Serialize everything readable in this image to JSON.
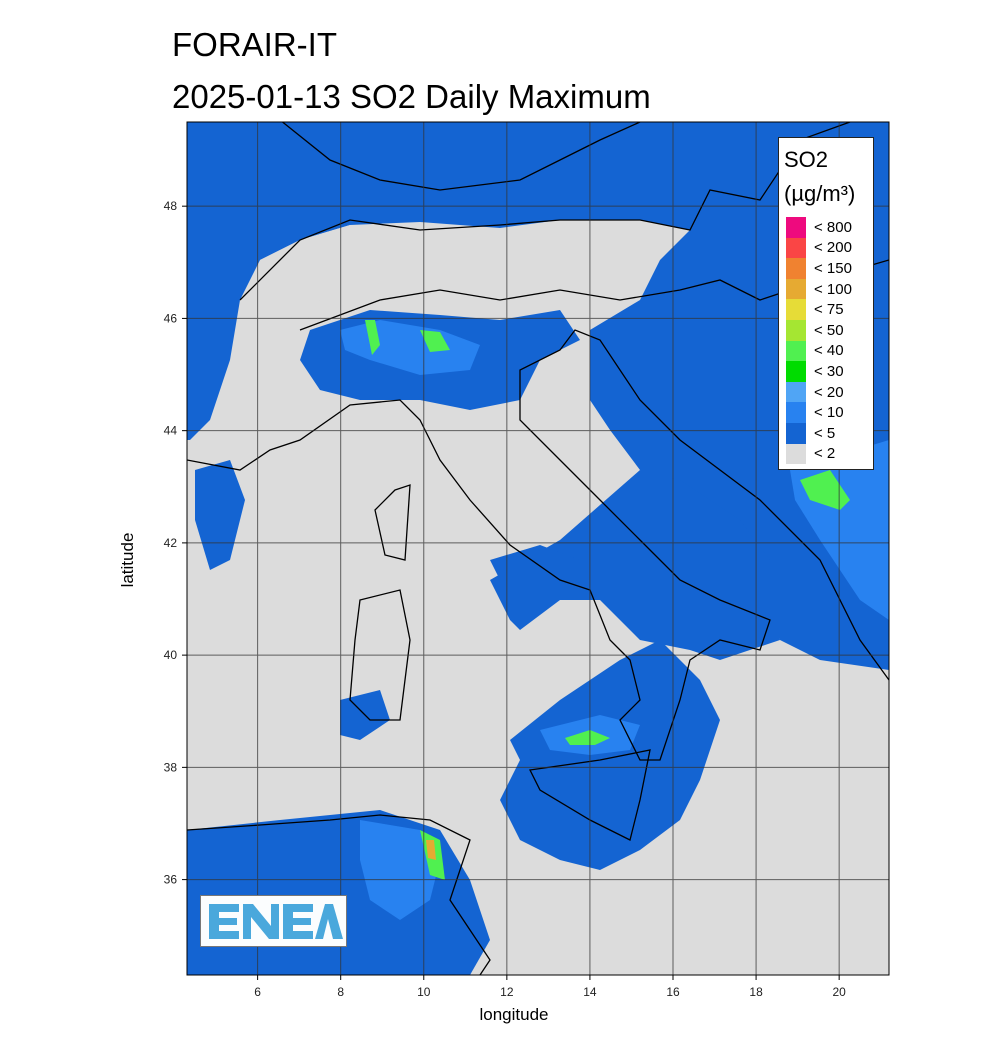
{
  "header": {
    "title": "FORAIR-IT",
    "subtitle": "2025-01-13   SO2 Daily Maximum"
  },
  "axes": {
    "xlabel": "longitude",
    "ylabel": "latitude",
    "x_ticks": [
      "6",
      "8",
      "10",
      "12",
      "14",
      "16",
      "18",
      "20"
    ],
    "y_ticks": [
      "48",
      "46",
      "44",
      "42",
      "40",
      "38",
      "36"
    ],
    "lon_range": [
      4.3,
      21.2
    ],
    "lat_range": [
      34.3,
      49.5
    ],
    "grid": true
  },
  "legend": {
    "title": "SO2",
    "unit": "(µg/m³)",
    "items": [
      {
        "label": "< 800",
        "color": "#ee0a7e"
      },
      {
        "label": "< 200",
        "color": "#fa4545"
      },
      {
        "label": "< 150",
        "color": "#f08230"
      },
      {
        "label": "< 100",
        "color": "#e6aa32"
      },
      {
        "label": "< 75",
        "color": "#e6dc37"
      },
      {
        "label": "< 50",
        "color": "#a5e632"
      },
      {
        "label": "< 40",
        "color": "#50f050"
      },
      {
        "label": "< 30",
        "color": "#00dc00"
      },
      {
        "label": "< 20",
        "color": "#50a5f5"
      },
      {
        "label": "< 10",
        "color": "#2882f0"
      },
      {
        "label": "< 5",
        "color": "#1464d2"
      },
      {
        "label": "< 2",
        "color": "#dcdcdc"
      }
    ]
  },
  "logo": {
    "text": "ENEA",
    "color": "#4aa8dc"
  }
}
